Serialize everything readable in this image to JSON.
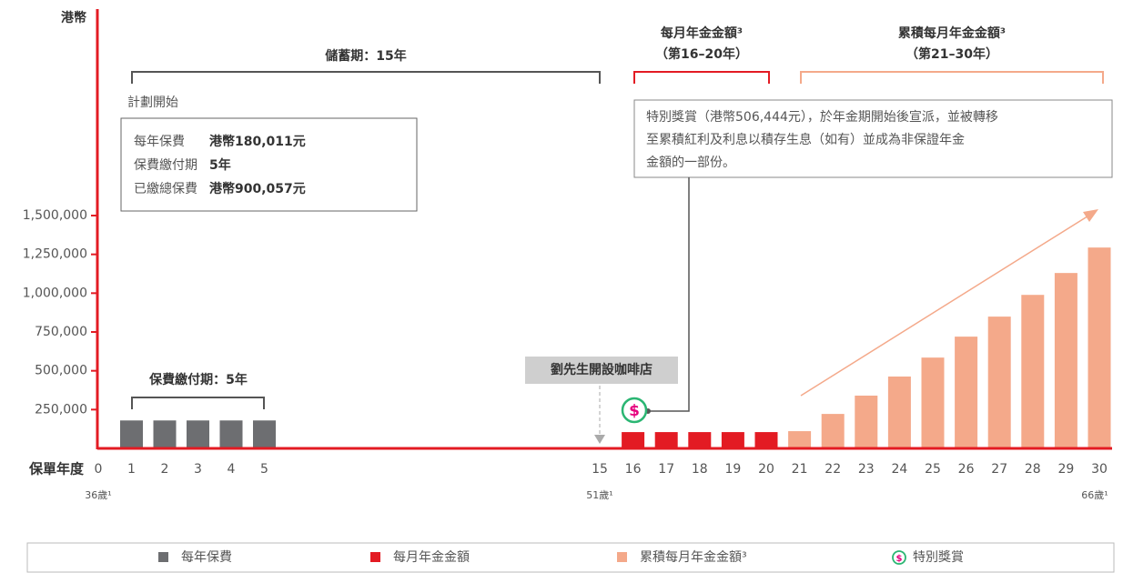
{
  "y_axis_label": "港幣",
  "x_axis_label": "保單年度",
  "chart_data": {
    "type": "bar",
    "categories": [
      "0",
      "1",
      "2",
      "3",
      "4",
      "5",
      "15",
      "16",
      "17",
      "18",
      "19",
      "20",
      "21",
      "22",
      "23",
      "24",
      "25",
      "26",
      "27",
      "28",
      "29",
      "30"
    ],
    "age_labels": [
      "36歲¹",
      null,
      null,
      null,
      null,
      null,
      "51歲¹",
      null,
      null,
      null,
      null,
      null,
      null,
      null,
      null,
      null,
      null,
      null,
      null,
      null,
      null,
      "66歲¹"
    ],
    "series": [
      {
        "name": "每年保費",
        "color": "#6d6e71",
        "values": [
          null,
          180011,
          180011,
          180011,
          180011,
          180011,
          null,
          null,
          null,
          null,
          null,
          null,
          null,
          null,
          null,
          null,
          null,
          null,
          null,
          null,
          null,
          null
        ]
      },
      {
        "name": "每月年金金額",
        "color": "#e31b23",
        "values": [
          null,
          null,
          null,
          null,
          null,
          null,
          null,
          105000,
          105000,
          105000,
          105000,
          105000,
          null,
          null,
          null,
          null,
          null,
          null,
          null,
          null,
          null,
          null
        ]
      },
      {
        "name": "累積每月年金金額³",
        "color": "#f4a98a",
        "values": [
          null,
          null,
          null,
          null,
          null,
          null,
          null,
          null,
          null,
          null,
          null,
          null,
          111000,
          222000,
          340000,
          463000,
          585000,
          720000,
          849000,
          989000,
          1130000,
          1294000
        ]
      }
    ],
    "ylim": [
      0,
      1500000
    ],
    "yticks": [
      {
        "value": 250000,
        "label": "250,000"
      },
      {
        "value": 500000,
        "label": "500,000"
      },
      {
        "value": 750000,
        "label": "750,000"
      },
      {
        "value": 1000000,
        "label": "1,000,000"
      },
      {
        "value": 1250000,
        "label": "1,250,000"
      },
      {
        "value": 1500000,
        "label": "1,500,000"
      }
    ]
  },
  "annotations": {
    "savings_period": "儲蓄期：15年",
    "plan_start": "計劃開始",
    "premium_info": [
      [
        "每年保費",
        "港幣180,011元"
      ],
      [
        "保費繳付期",
        "5年"
      ],
      [
        "已繳總保費",
        "港幣900,057元"
      ]
    ],
    "payment_period": "保費繳付期：5年",
    "cafe": "劉先生開設咖啡店",
    "monthly_title": "每月年金金額³",
    "monthly_years": "（第16–20年）",
    "accum_title": "累積每月年金金額³",
    "accum_years": "（第21–30年）",
    "bonus_note": [
      "特別獎賞（港幣506,444元），於年金期開始後宣派，並被轉移",
      "至累積紅利及利息以積存生息（如有）並成為非保證年金",
      "金額的一部份。"
    ],
    "bonus_icon": "$",
    "bonus_legend": "特別獎賞"
  }
}
